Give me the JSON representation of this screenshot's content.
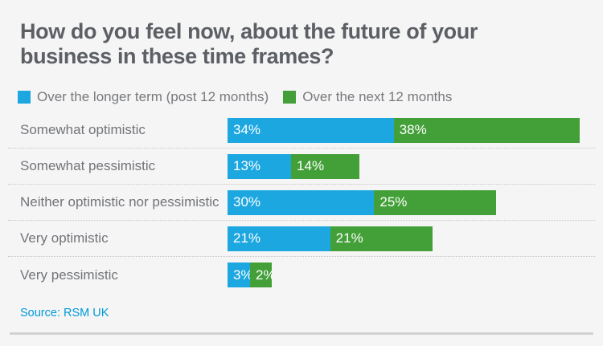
{
  "source_note": "Source: RSM UK",
  "chart_data": {
    "type": "bar",
    "orientation": "horizontal",
    "grouping": "stacked",
    "title": "How do you feel now, about the future of your business in these time frames?",
    "categories": [
      "Somewhat optimistic",
      "Somewhat pessimistic",
      "Neither optimistic nor pessimistic",
      "Very optimistic",
      "Very pessimistic"
    ],
    "series": [
      {
        "name": "Over the longer term (post 12 months)",
        "color": "#1ca7e0",
        "values": [
          34,
          13,
          30,
          21,
          3
        ]
      },
      {
        "name": "Over the next 12 months",
        "color": "#43a038",
        "values": [
          38,
          14,
          25,
          21,
          2
        ]
      }
    ],
    "value_suffix": "%",
    "value_labels": "inside-left",
    "legend_position": "top",
    "grid": false,
    "xlabel": "",
    "ylabel": "",
    "xlim": [
      0,
      73
    ]
  },
  "colors": {
    "background": "#f5f5f6",
    "title_text": "#5c5f64",
    "label_text": "#727478",
    "source_text": "#0099d8",
    "separator": "#c6c6c6",
    "bottom_rule": "#d2d2d3"
  }
}
